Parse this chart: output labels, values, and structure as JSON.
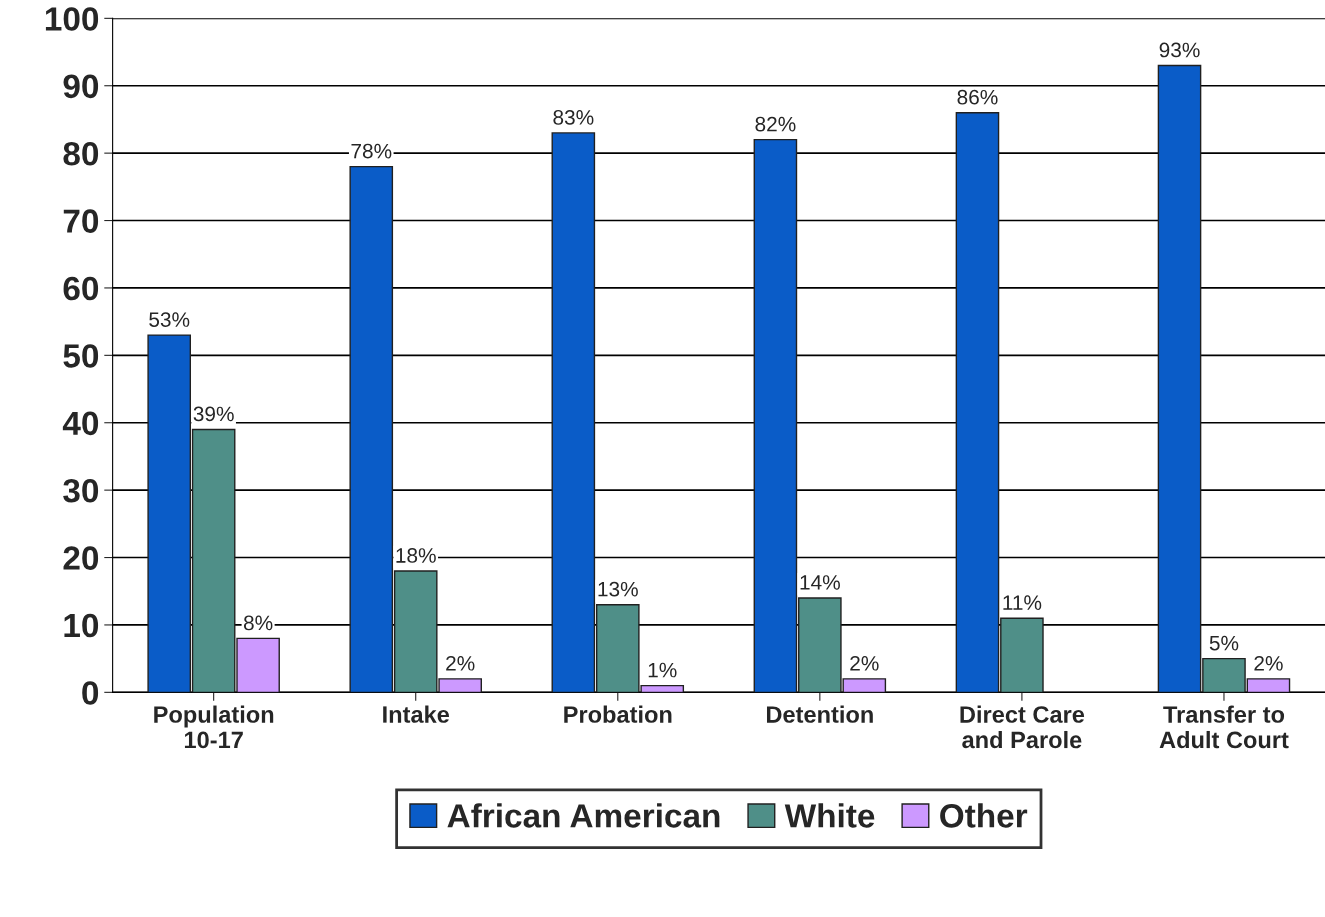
{
  "chart_data": {
    "type": "bar",
    "categories": [
      "Population\n10-17",
      "Intake",
      "Probation",
      "Detention",
      "Direct Care\nand Parole",
      "Transfer to\nAdult Court"
    ],
    "series": [
      {
        "name": "African American",
        "color": "#0a5cc8",
        "values": [
          53,
          78,
          83,
          82,
          86,
          93
        ],
        "value_labels": [
          "53%",
          "78%",
          "83%",
          "82%",
          "86%",
          "93%"
        ]
      },
      {
        "name": "White",
        "color": "#4f8f88",
        "values": [
          39,
          18,
          13,
          14,
          11,
          5
        ],
        "value_labels": [
          "39%",
          "18%",
          "13%",
          "14%",
          "11%",
          "5%"
        ]
      },
      {
        "name": "Other",
        "color": "#cc99ff",
        "values": [
          8,
          2,
          1,
          2,
          0,
          2
        ],
        "value_labels": [
          "8%",
          "2%",
          "1%",
          "2%",
          null,
          "2%"
        ]
      }
    ],
    "ylim": [
      0,
      100
    ],
    "yticks": [
      0,
      10,
      20,
      30,
      40,
      50,
      60,
      70,
      80,
      90,
      100
    ],
    "grid": "y",
    "legend": "bottom"
  }
}
